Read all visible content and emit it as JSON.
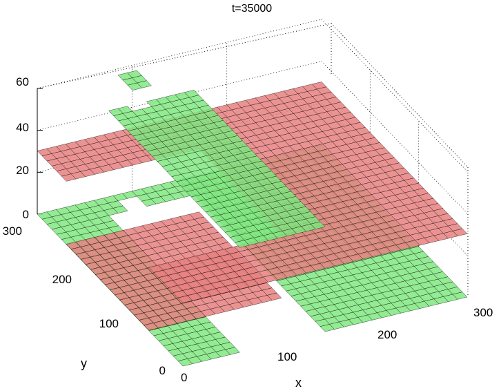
{
  "chart_data": {
    "type": "surface",
    "title": "t=35000",
    "xlabel": "x",
    "ylabel": "y",
    "zlabel": "",
    "xlim": [
      0,
      300
    ],
    "ylim": [
      0,
      300
    ],
    "zlim": [
      0,
      60
    ],
    "x_ticks": [
      "0",
      "100",
      "200",
      "300"
    ],
    "y_ticks": [
      "0",
      "100",
      "200",
      "300"
    ],
    "z_ticks": [
      "0",
      "20",
      "40",
      "60"
    ],
    "grid": true,
    "legend": "none",
    "colors": {
      "red_surface": "#e88080",
      "green_surface": "#80e880",
      "mesh_line": "#000000"
    },
    "series": [
      {
        "color": "red",
        "description_values": {
          "base_level": 30,
          "low_region_level": 0,
          "low_region_x": [
            0,
            140
          ],
          "low_region_y": [
            70,
            240
          ]
        }
      },
      {
        "color": "green",
        "description_values": {
          "base_level": 0,
          "ridge_level": 50,
          "peak_level": 60,
          "ridge_x": [
            60,
            150
          ],
          "ridge_y": [
            0,
            270
          ],
          "peak_x": [
            80,
            95
          ],
          "peak_y": [
            265,
            285
          ]
        }
      }
    ]
  }
}
